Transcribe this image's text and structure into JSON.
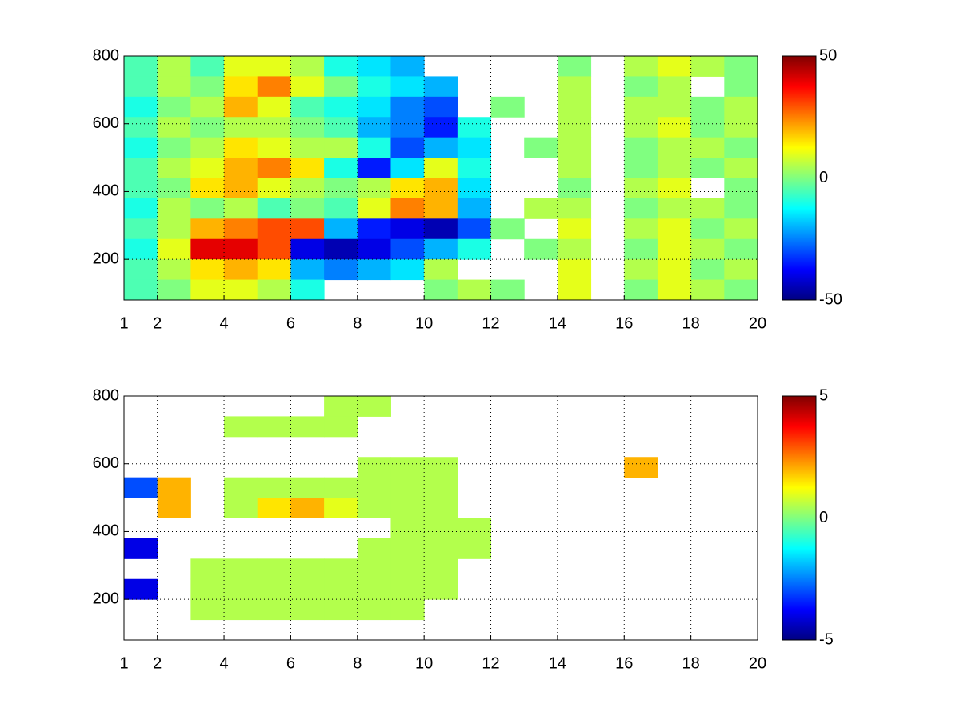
{
  "chart_data": [
    {
      "type": "heatmap",
      "colormap": "jet",
      "grid": true,
      "x": [
        1.5,
        2.5,
        3.5,
        4.5,
        5.5,
        6.5,
        7.5,
        8.5,
        9.5,
        10.5,
        11.5,
        12.5,
        13.5,
        14.5,
        15.5,
        16.5,
        17.5,
        18.5,
        19.5
      ],
      "y": [
        770,
        710,
        650,
        590,
        530,
        470,
        410,
        350,
        290,
        230,
        170,
        110
      ],
      "z": [
        [
          -5,
          5,
          -5,
          10,
          10,
          5,
          -10,
          -15,
          -20,
          null,
          null,
          null,
          null,
          0,
          null,
          5,
          10,
          5,
          0
        ],
        [
          -5,
          5,
          0,
          15,
          25,
          10,
          0,
          -10,
          -15,
          -20,
          null,
          null,
          null,
          5,
          null,
          0,
          5,
          null,
          0
        ],
        [
          -10,
          0,
          5,
          20,
          10,
          -5,
          -10,
          -15,
          -25,
          -30,
          null,
          0,
          null,
          5,
          null,
          5,
          5,
          0,
          5
        ],
        [
          -5,
          5,
          0,
          5,
          5,
          0,
          -5,
          -20,
          -25,
          -35,
          -10,
          null,
          null,
          5,
          null,
          5,
          10,
          0,
          5
        ],
        [
          -10,
          0,
          5,
          15,
          10,
          5,
          5,
          -10,
          -30,
          -20,
          -15,
          null,
          0,
          5,
          null,
          0,
          5,
          5,
          0
        ],
        [
          -5,
          5,
          10,
          20,
          25,
          15,
          -10,
          -35,
          -15,
          10,
          -10,
          null,
          null,
          5,
          null,
          0,
          5,
          0,
          5
        ],
        [
          -5,
          0,
          15,
          20,
          10,
          5,
          0,
          5,
          15,
          20,
          -15,
          null,
          null,
          0,
          null,
          5,
          10,
          null,
          0
        ],
        [
          -10,
          5,
          0,
          5,
          -5,
          0,
          -5,
          10,
          25,
          20,
          -20,
          null,
          5,
          5,
          null,
          0,
          5,
          5,
          0
        ],
        [
          -5,
          5,
          20,
          25,
          30,
          30,
          -20,
          -35,
          -40,
          -45,
          -30,
          0,
          null,
          10,
          null,
          5,
          10,
          0,
          5
        ],
        [
          -10,
          10,
          40,
          40,
          30,
          -40,
          -45,
          -40,
          -30,
          -20,
          -10,
          null,
          0,
          5,
          null,
          0,
          10,
          5,
          0
        ],
        [
          -5,
          5,
          15,
          20,
          15,
          -20,
          -25,
          -20,
          -15,
          5,
          null,
          null,
          null,
          10,
          null,
          5,
          10,
          0,
          5
        ],
        [
          -5,
          0,
          10,
          10,
          5,
          -10,
          null,
          null,
          null,
          0,
          5,
          0,
          null,
          10,
          null,
          0,
          10,
          5,
          0
        ]
      ],
      "xlim": [
        1,
        20
      ],
      "xticks": [
        1,
        2,
        4,
        6,
        8,
        10,
        12,
        14,
        16,
        18,
        20
      ],
      "ylim": [
        80,
        800
      ],
      "yticks": [
        200,
        400,
        600,
        800
      ],
      "clim": [
        -50,
        50
      ],
      "cticks": [
        -50,
        0,
        50
      ]
    },
    {
      "type": "heatmap",
      "colormap": "jet",
      "grid": true,
      "x": [
        1.5,
        2.5,
        3.5,
        4.5,
        5.5,
        6.5,
        7.5,
        8.5,
        9.5,
        10.5,
        11.5,
        12.5,
        13.5,
        14.5,
        15.5,
        16.5,
        17.5,
        18.5,
        19.5
      ],
      "y": [
        770,
        710,
        650,
        590,
        530,
        470,
        410,
        350,
        290,
        230,
        170,
        110
      ],
      "z": [
        [
          null,
          null,
          null,
          null,
          null,
          null,
          0.5,
          0.5,
          null,
          null,
          null,
          null,
          null,
          null,
          null,
          null,
          null,
          null,
          null
        ],
        [
          null,
          null,
          null,
          0.5,
          0.5,
          0.5,
          0.5,
          null,
          null,
          null,
          null,
          null,
          null,
          null,
          null,
          null,
          null,
          null,
          null
        ],
        [
          null,
          null,
          null,
          null,
          null,
          null,
          null,
          null,
          null,
          null,
          null,
          null,
          null,
          null,
          null,
          null,
          null,
          null,
          null
        ],
        [
          null,
          null,
          null,
          null,
          null,
          null,
          null,
          0.5,
          0.5,
          0.5,
          null,
          null,
          null,
          null,
          null,
          2,
          null,
          null,
          null
        ],
        [
          -3,
          2,
          null,
          0.5,
          0.5,
          0.5,
          0.5,
          0.5,
          0.5,
          0.5,
          null,
          null,
          null,
          null,
          null,
          null,
          null,
          null,
          null
        ],
        [
          null,
          2,
          null,
          0.5,
          1.5,
          2,
          1,
          0.5,
          0.5,
          0.5,
          null,
          null,
          null,
          null,
          null,
          null,
          null,
          null,
          null
        ],
        [
          null,
          null,
          null,
          null,
          null,
          null,
          null,
          null,
          0.5,
          0.5,
          0.5,
          null,
          null,
          null,
          null,
          null,
          null,
          null,
          null
        ],
        [
          -4,
          null,
          null,
          null,
          null,
          null,
          null,
          0.5,
          0.5,
          0.5,
          0.5,
          null,
          null,
          null,
          null,
          null,
          null,
          null,
          null
        ],
        [
          null,
          null,
          0.5,
          0.5,
          0.5,
          0.5,
          0.5,
          0.5,
          0.5,
          0.5,
          null,
          null,
          null,
          null,
          null,
          null,
          null,
          null,
          null
        ],
        [
          -4,
          null,
          0.5,
          0.5,
          0.5,
          0.5,
          0.5,
          0.5,
          0.5,
          0.5,
          null,
          null,
          null,
          null,
          null,
          null,
          null,
          null,
          null
        ],
        [
          null,
          null,
          0.5,
          0.5,
          0.5,
          0.5,
          0.5,
          0.5,
          0.5,
          null,
          null,
          null,
          null,
          null,
          null,
          null,
          null,
          null,
          null
        ],
        [
          null,
          null,
          null,
          null,
          null,
          null,
          null,
          null,
          null,
          null,
          null,
          null,
          null,
          null,
          null,
          null,
          null,
          null,
          null
        ]
      ],
      "xlim": [
        1,
        20
      ],
      "xticks": [
        1,
        2,
        4,
        6,
        8,
        10,
        12,
        14,
        16,
        18,
        20
      ],
      "ylim": [
        80,
        800
      ],
      "yticks": [
        200,
        400,
        600,
        800
      ],
      "clim": [
        -5,
        5
      ],
      "cticks": [
        -5,
        0,
        5
      ]
    }
  ]
}
